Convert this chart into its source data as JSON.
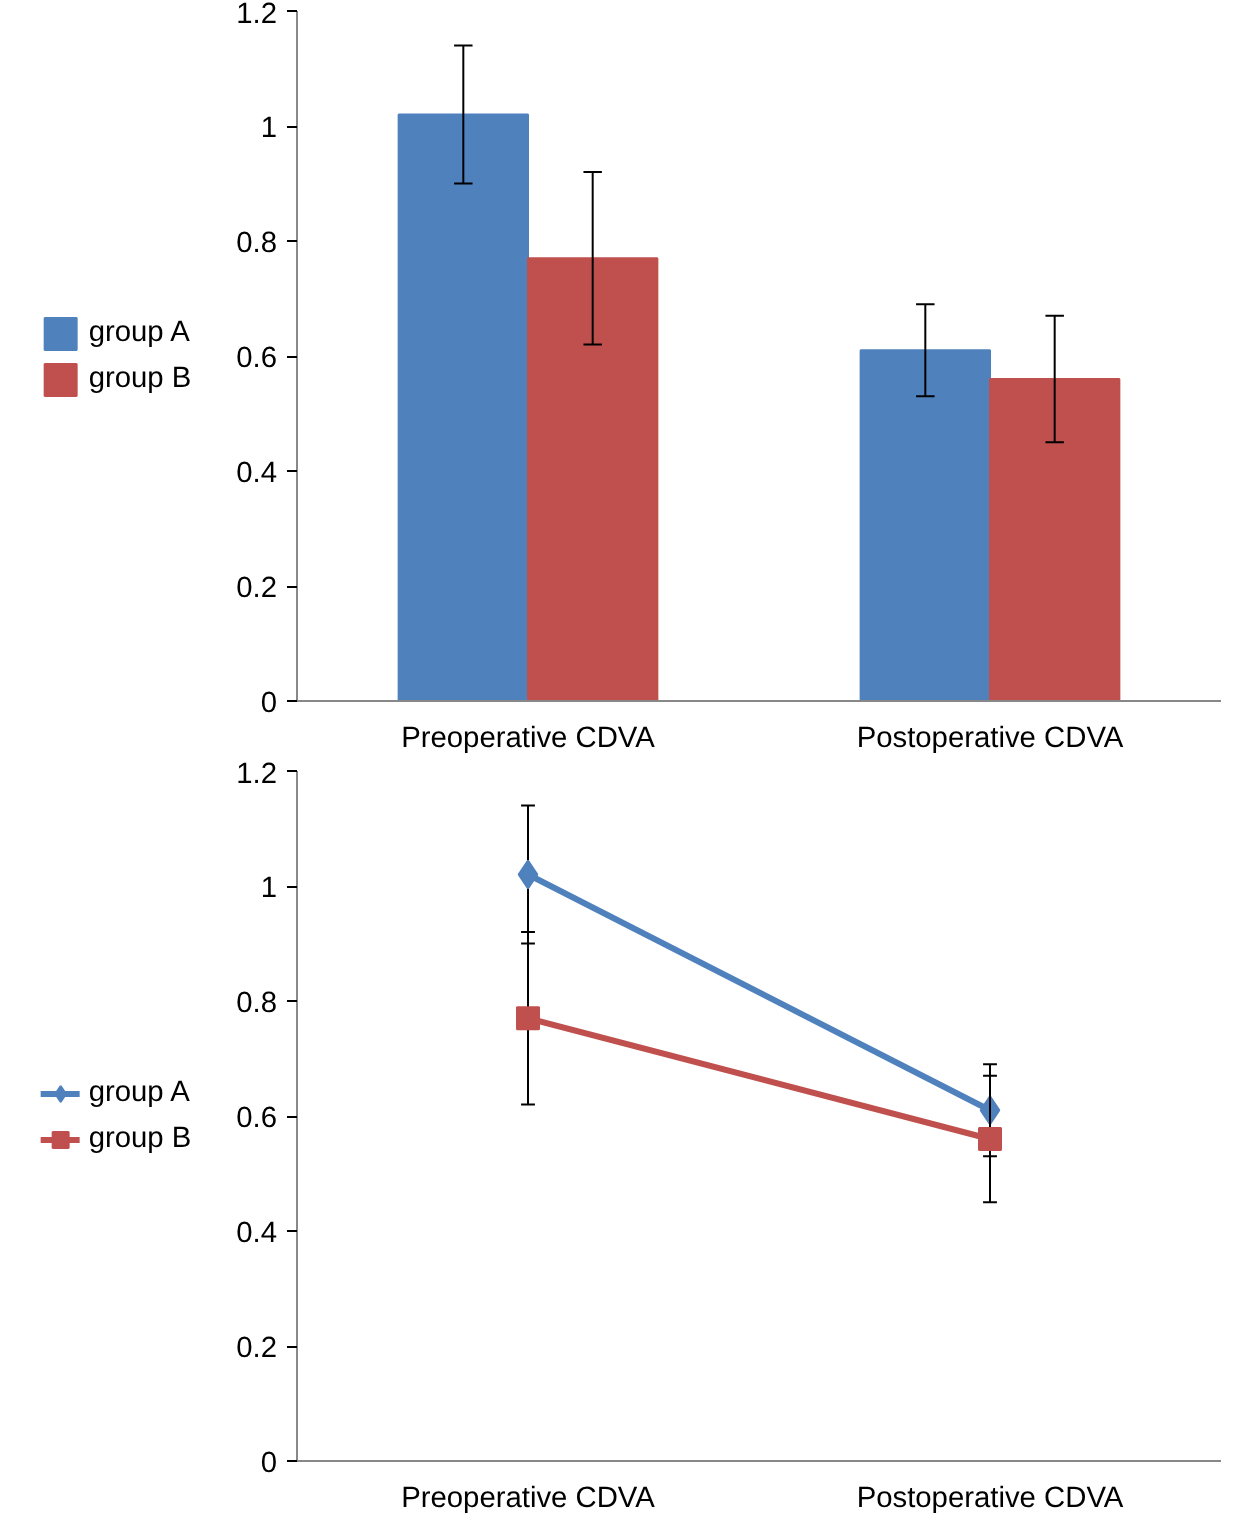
{
  "chart_data": [
    {
      "type": "bar",
      "categories": [
        "Preoperative CDVA",
        "Postoperative CDVA"
      ],
      "series": [
        {
          "name": "group A",
          "color": "#4f81bd",
          "values": [
            1.02,
            0.61
          ],
          "errors": [
            0.12,
            0.08
          ]
        },
        {
          "name": "group B",
          "color": "#c0504d",
          "values": [
            0.77,
            0.56
          ],
          "errors": [
            0.15,
            0.11
          ]
        }
      ],
      "ylim": [
        0,
        1.2
      ],
      "yticks": [
        0,
        0.2,
        0.4,
        0.6,
        0.8,
        1,
        1.2
      ],
      "grid": false,
      "legend": "left"
    },
    {
      "type": "line",
      "categories": [
        "Preoperative CDVA",
        "Postoperative CDVA"
      ],
      "series": [
        {
          "name": "group A",
          "color": "#4f81bd",
          "values": [
            1.02,
            0.61
          ],
          "errors": [
            0.12,
            0.08
          ],
          "marker": "diamond"
        },
        {
          "name": "group B",
          "color": "#c0504d",
          "values": [
            0.77,
            0.56
          ],
          "errors": [
            0.15,
            0.11
          ],
          "marker": "square"
        }
      ],
      "ylim": [
        0,
        1.2
      ],
      "yticks": [
        0,
        0.2,
        0.4,
        0.6,
        0.8,
        1,
        1.2
      ],
      "grid": false,
      "legend": "left"
    }
  ]
}
